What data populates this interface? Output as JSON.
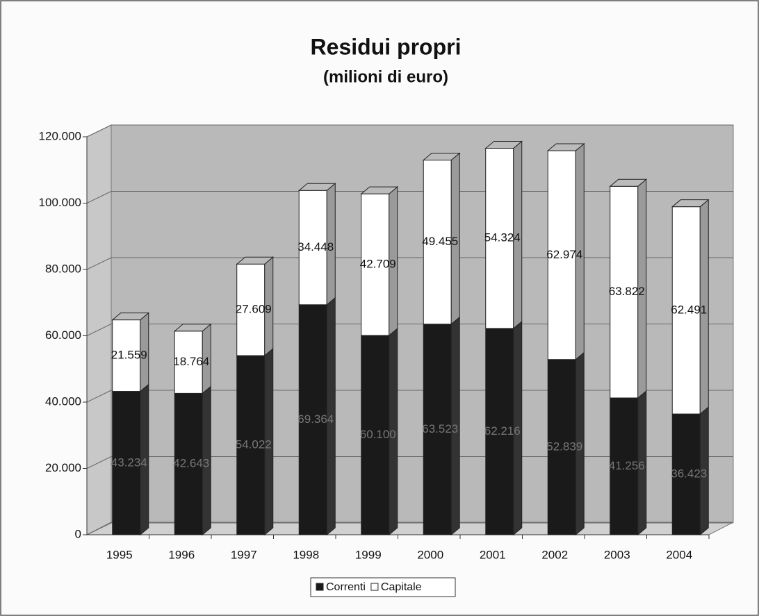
{
  "chart_data": {
    "type": "bar3d_stacked",
    "title": "Residui propri",
    "subtitle": "(milioni di euro)",
    "categories": [
      "1995",
      "1996",
      "1997",
      "1998",
      "1999",
      "2000",
      "2001",
      "2002",
      "2003",
      "2004"
    ],
    "series": [
      {
        "name": "Correnti",
        "color": "#1a1a1a",
        "values": [
          43234,
          42643,
          54022,
          69364,
          60100,
          63523,
          62216,
          52839,
          41256,
          36423
        ],
        "value_labels": [
          "43.234",
          "42.643",
          "54.022",
          "69.364",
          "60.100",
          "63.523",
          "62.216",
          "52.839",
          "41.256",
          "36.423"
        ]
      },
      {
        "name": "Capitale",
        "color": "#ffffff",
        "values": [
          21559,
          18764,
          27609,
          34448,
          42709,
          49455,
          54324,
          62974,
          63822,
          62491
        ],
        "value_labels": [
          "21.559",
          "18.764",
          "27.609",
          "34.448",
          "42.709",
          "49.455",
          "54.324",
          "62.974",
          "63.822",
          "62.491"
        ]
      }
    ],
    "ylim": [
      0,
      120000
    ],
    "yticks": [
      0,
      {
        "value": 20000,
        "label": "20.000"
      },
      {
        "value": 40000,
        "label": "40.000"
      },
      {
        "value": 60000,
        "label": "60.000"
      },
      {
        "value": 80000,
        "label": "80.000"
      },
      {
        "value": 100000,
        "label": "100.000"
      },
      {
        "value": 120000,
        "label": "120.000"
      }
    ],
    "grid": true,
    "legend": "bottom"
  }
}
